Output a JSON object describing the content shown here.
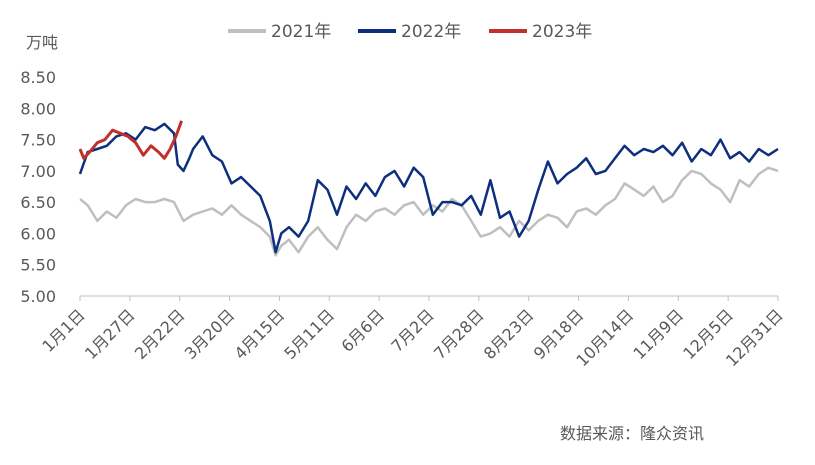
{
  "chart_data": {
    "type": "line",
    "title": "",
    "y_unit_label": "万吨",
    "source": "数据来源：隆众资讯",
    "ylim": [
      5.0,
      8.5
    ],
    "y_ticks": [
      "5.00",
      "5.50",
      "6.00",
      "6.50",
      "7.00",
      "7.50",
      "8.00",
      "8.50"
    ],
    "y_tick_values": [
      5.0,
      5.5,
      6.0,
      6.5,
      7.0,
      7.5,
      8.0,
      8.5
    ],
    "x_ticks": [
      "1月1日",
      "1月27日",
      "2月22日",
      "3月20日",
      "4月15日",
      "5月11日",
      "6月6日",
      "7月2日",
      "7月28日",
      "8月23日",
      "9月18日",
      "10月14日",
      "11月9日",
      "12月5日",
      "12月31日"
    ],
    "x_tick_values": [
      1,
      27,
      53,
      79,
      105,
      131,
      157,
      183,
      209,
      235,
      261,
      287,
      313,
      339,
      365
    ],
    "xlim": [
      1,
      365
    ],
    "x_unit": "day of year",
    "legend_position": "top",
    "grid": false,
    "series": [
      {
        "name": "2021年",
        "color": "#bfbfbf",
        "x": [
          1,
          5,
          10,
          15,
          20,
          25,
          30,
          35,
          40,
          45,
          50,
          55,
          60,
          65,
          70,
          75,
          80,
          85,
          90,
          95,
          100,
          103,
          106,
          110,
          115,
          120,
          125,
          130,
          135,
          140,
          145,
          150,
          155,
          160,
          165,
          170,
          175,
          180,
          185,
          190,
          195,
          200,
          205,
          210,
          215,
          220,
          225,
          230,
          235,
          240,
          245,
          250,
          255,
          260,
          265,
          270,
          275,
          280,
          285,
          290,
          295,
          300,
          305,
          310,
          315,
          320,
          325,
          330,
          335,
          340,
          345,
          350,
          355,
          360,
          365
        ],
        "values": [
          6.55,
          6.45,
          6.2,
          6.35,
          6.25,
          6.45,
          6.55,
          6.5,
          6.5,
          6.55,
          6.5,
          6.2,
          6.3,
          6.35,
          6.4,
          6.3,
          6.45,
          6.3,
          6.2,
          6.1,
          5.95,
          5.65,
          5.8,
          5.9,
          5.7,
          5.95,
          6.1,
          5.9,
          5.75,
          6.1,
          6.3,
          6.2,
          6.35,
          6.4,
          6.3,
          6.45,
          6.5,
          6.3,
          6.45,
          6.35,
          6.55,
          6.45,
          6.2,
          5.95,
          6.0,
          6.1,
          5.95,
          6.2,
          6.05,
          6.2,
          6.3,
          6.25,
          6.1,
          6.35,
          6.4,
          6.3,
          6.45,
          6.55,
          6.8,
          6.7,
          6.6,
          6.75,
          6.5,
          6.6,
          6.85,
          7.0,
          6.95,
          6.8,
          6.7,
          6.5,
          6.85,
          6.75,
          6.95,
          7.05,
          7.0
        ]
      },
      {
        "name": "2022年",
        "color": "#0d2f7e",
        "x": [
          1,
          5,
          10,
          15,
          20,
          25,
          30,
          35,
          40,
          45,
          50,
          52,
          55,
          58,
          60,
          65,
          70,
          75,
          80,
          85,
          90,
          95,
          100,
          103,
          106,
          110,
          115,
          120,
          125,
          130,
          135,
          140,
          145,
          150,
          155,
          160,
          165,
          170,
          175,
          180,
          185,
          190,
          195,
          200,
          205,
          210,
          215,
          220,
          225,
          230,
          235,
          240,
          245,
          250,
          255,
          260,
          265,
          270,
          275,
          280,
          285,
          290,
          295,
          300,
          305,
          310,
          315,
          320,
          325,
          330,
          335,
          340,
          345,
          350,
          355,
          360,
          365
        ],
        "values": [
          6.95,
          7.3,
          7.35,
          7.4,
          7.55,
          7.6,
          7.5,
          7.7,
          7.65,
          7.75,
          7.6,
          7.1,
          7.0,
          7.2,
          7.35,
          7.55,
          7.25,
          7.15,
          6.8,
          6.9,
          6.75,
          6.6,
          6.2,
          5.7,
          6.0,
          6.1,
          5.95,
          6.2,
          6.85,
          6.7,
          6.3,
          6.75,
          6.55,
          6.8,
          6.6,
          6.9,
          7.0,
          6.75,
          7.05,
          6.9,
          6.3,
          6.5,
          6.5,
          6.45,
          6.6,
          6.3,
          6.85,
          6.25,
          6.35,
          5.95,
          6.2,
          6.7,
          7.15,
          6.8,
          6.95,
          7.05,
          7.2,
          6.95,
          7.0,
          7.2,
          7.4,
          7.25,
          7.35,
          7.3,
          7.4,
          7.25,
          7.45,
          7.15,
          7.35,
          7.25,
          7.5,
          7.2,
          7.3,
          7.15,
          7.35,
          7.25,
          7.35
        ]
      },
      {
        "name": "2023年",
        "color": "#c0312b",
        "x": [
          1,
          3,
          6,
          10,
          14,
          18,
          22,
          26,
          30,
          34,
          38,
          42,
          45,
          48,
          51,
          54
        ],
        "values": [
          7.35,
          7.2,
          7.3,
          7.45,
          7.5,
          7.65,
          7.6,
          7.55,
          7.45,
          7.25,
          7.4,
          7.3,
          7.2,
          7.35,
          7.55,
          7.8
        ]
      }
    ]
  }
}
